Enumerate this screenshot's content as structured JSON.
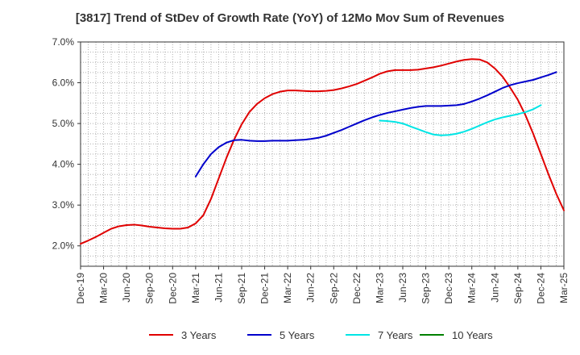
{
  "chart_data": {
    "type": "line",
    "title": "[3817]  Trend of StDev of Growth Rate (YoY) of 12Mo Mov Sum of Revenues",
    "xlabel": "",
    "ylabel": "",
    "ylim": [
      1.5,
      7.0
    ],
    "y_ticks": [
      2.0,
      3.0,
      4.0,
      5.0,
      6.0,
      7.0
    ],
    "y_tick_labels": [
      "2.0%",
      "3.0%",
      "4.0%",
      "5.0%",
      "6.0%",
      "7.0%"
    ],
    "x_tick_labels": [
      "Dec-19",
      "Mar-20",
      "Jun-20",
      "Sep-20",
      "Dec-20",
      "Mar-21",
      "Jun-21",
      "Sep-21",
      "Dec-21",
      "Mar-22",
      "Jun-22",
      "Sep-22",
      "Dec-22",
      "Mar-23",
      "Jun-23",
      "Sep-23",
      "Dec-23",
      "Mar-24",
      "Jun-24",
      "Sep-24",
      "Dec-24",
      "Mar-25"
    ],
    "x_tick_months": [
      0,
      3,
      6,
      9,
      12,
      15,
      18,
      21,
      24,
      27,
      30,
      33,
      36,
      39,
      42,
      45,
      48,
      51,
      54,
      57,
      60,
      63
    ],
    "series": [
      {
        "name": "3 Years",
        "color": "#e00000",
        "start_month": 0,
        "values": [
          2.05,
          2.13,
          2.22,
          2.32,
          2.42,
          2.48,
          2.51,
          2.52,
          2.5,
          2.47,
          2.45,
          2.43,
          2.42,
          2.42,
          2.45,
          2.55,
          2.75,
          3.15,
          3.65,
          4.15,
          4.6,
          4.98,
          5.28,
          5.48,
          5.62,
          5.72,
          5.78,
          5.81,
          5.81,
          5.8,
          5.79,
          5.79,
          5.8,
          5.82,
          5.86,
          5.91,
          5.97,
          6.05,
          6.13,
          6.22,
          6.28,
          6.31,
          6.31,
          6.31,
          6.32,
          6.35,
          6.38,
          6.42,
          6.47,
          6.52,
          6.56,
          6.58,
          6.57,
          6.5,
          6.35,
          6.15,
          5.88,
          5.58,
          5.2,
          4.75,
          4.25,
          3.75,
          3.28,
          2.87
        ]
      },
      {
        "name": "5 Years",
        "color": "#0000cc",
        "start_month": 15,
        "values": [
          3.7,
          4.0,
          4.25,
          4.42,
          4.53,
          4.59,
          4.6,
          4.58,
          4.57,
          4.57,
          4.58,
          4.58,
          4.58,
          4.59,
          4.6,
          4.62,
          4.65,
          4.7,
          4.77,
          4.84,
          4.92,
          5.0,
          5.08,
          5.15,
          5.21,
          5.26,
          5.3,
          5.34,
          5.38,
          5.41,
          5.43,
          5.43,
          5.43,
          5.44,
          5.45,
          5.48,
          5.54,
          5.61,
          5.69,
          5.78,
          5.87,
          5.94,
          5.99,
          6.03,
          6.07,
          6.13,
          6.19,
          6.26
        ]
      },
      {
        "name": "7 Years",
        "color": "#00e5e5",
        "start_month": 39,
        "values": [
          5.07,
          5.06,
          5.04,
          5.0,
          4.93,
          4.86,
          4.79,
          4.73,
          4.71,
          4.72,
          4.75,
          4.8,
          4.87,
          4.95,
          5.03,
          5.1,
          5.15,
          5.19,
          5.23,
          5.28,
          5.35,
          5.45
        ]
      },
      {
        "name": "10 Years",
        "color": "#008000",
        "start_month": 0,
        "values": []
      }
    ],
    "grid": true,
    "legend_position": "bottom"
  }
}
